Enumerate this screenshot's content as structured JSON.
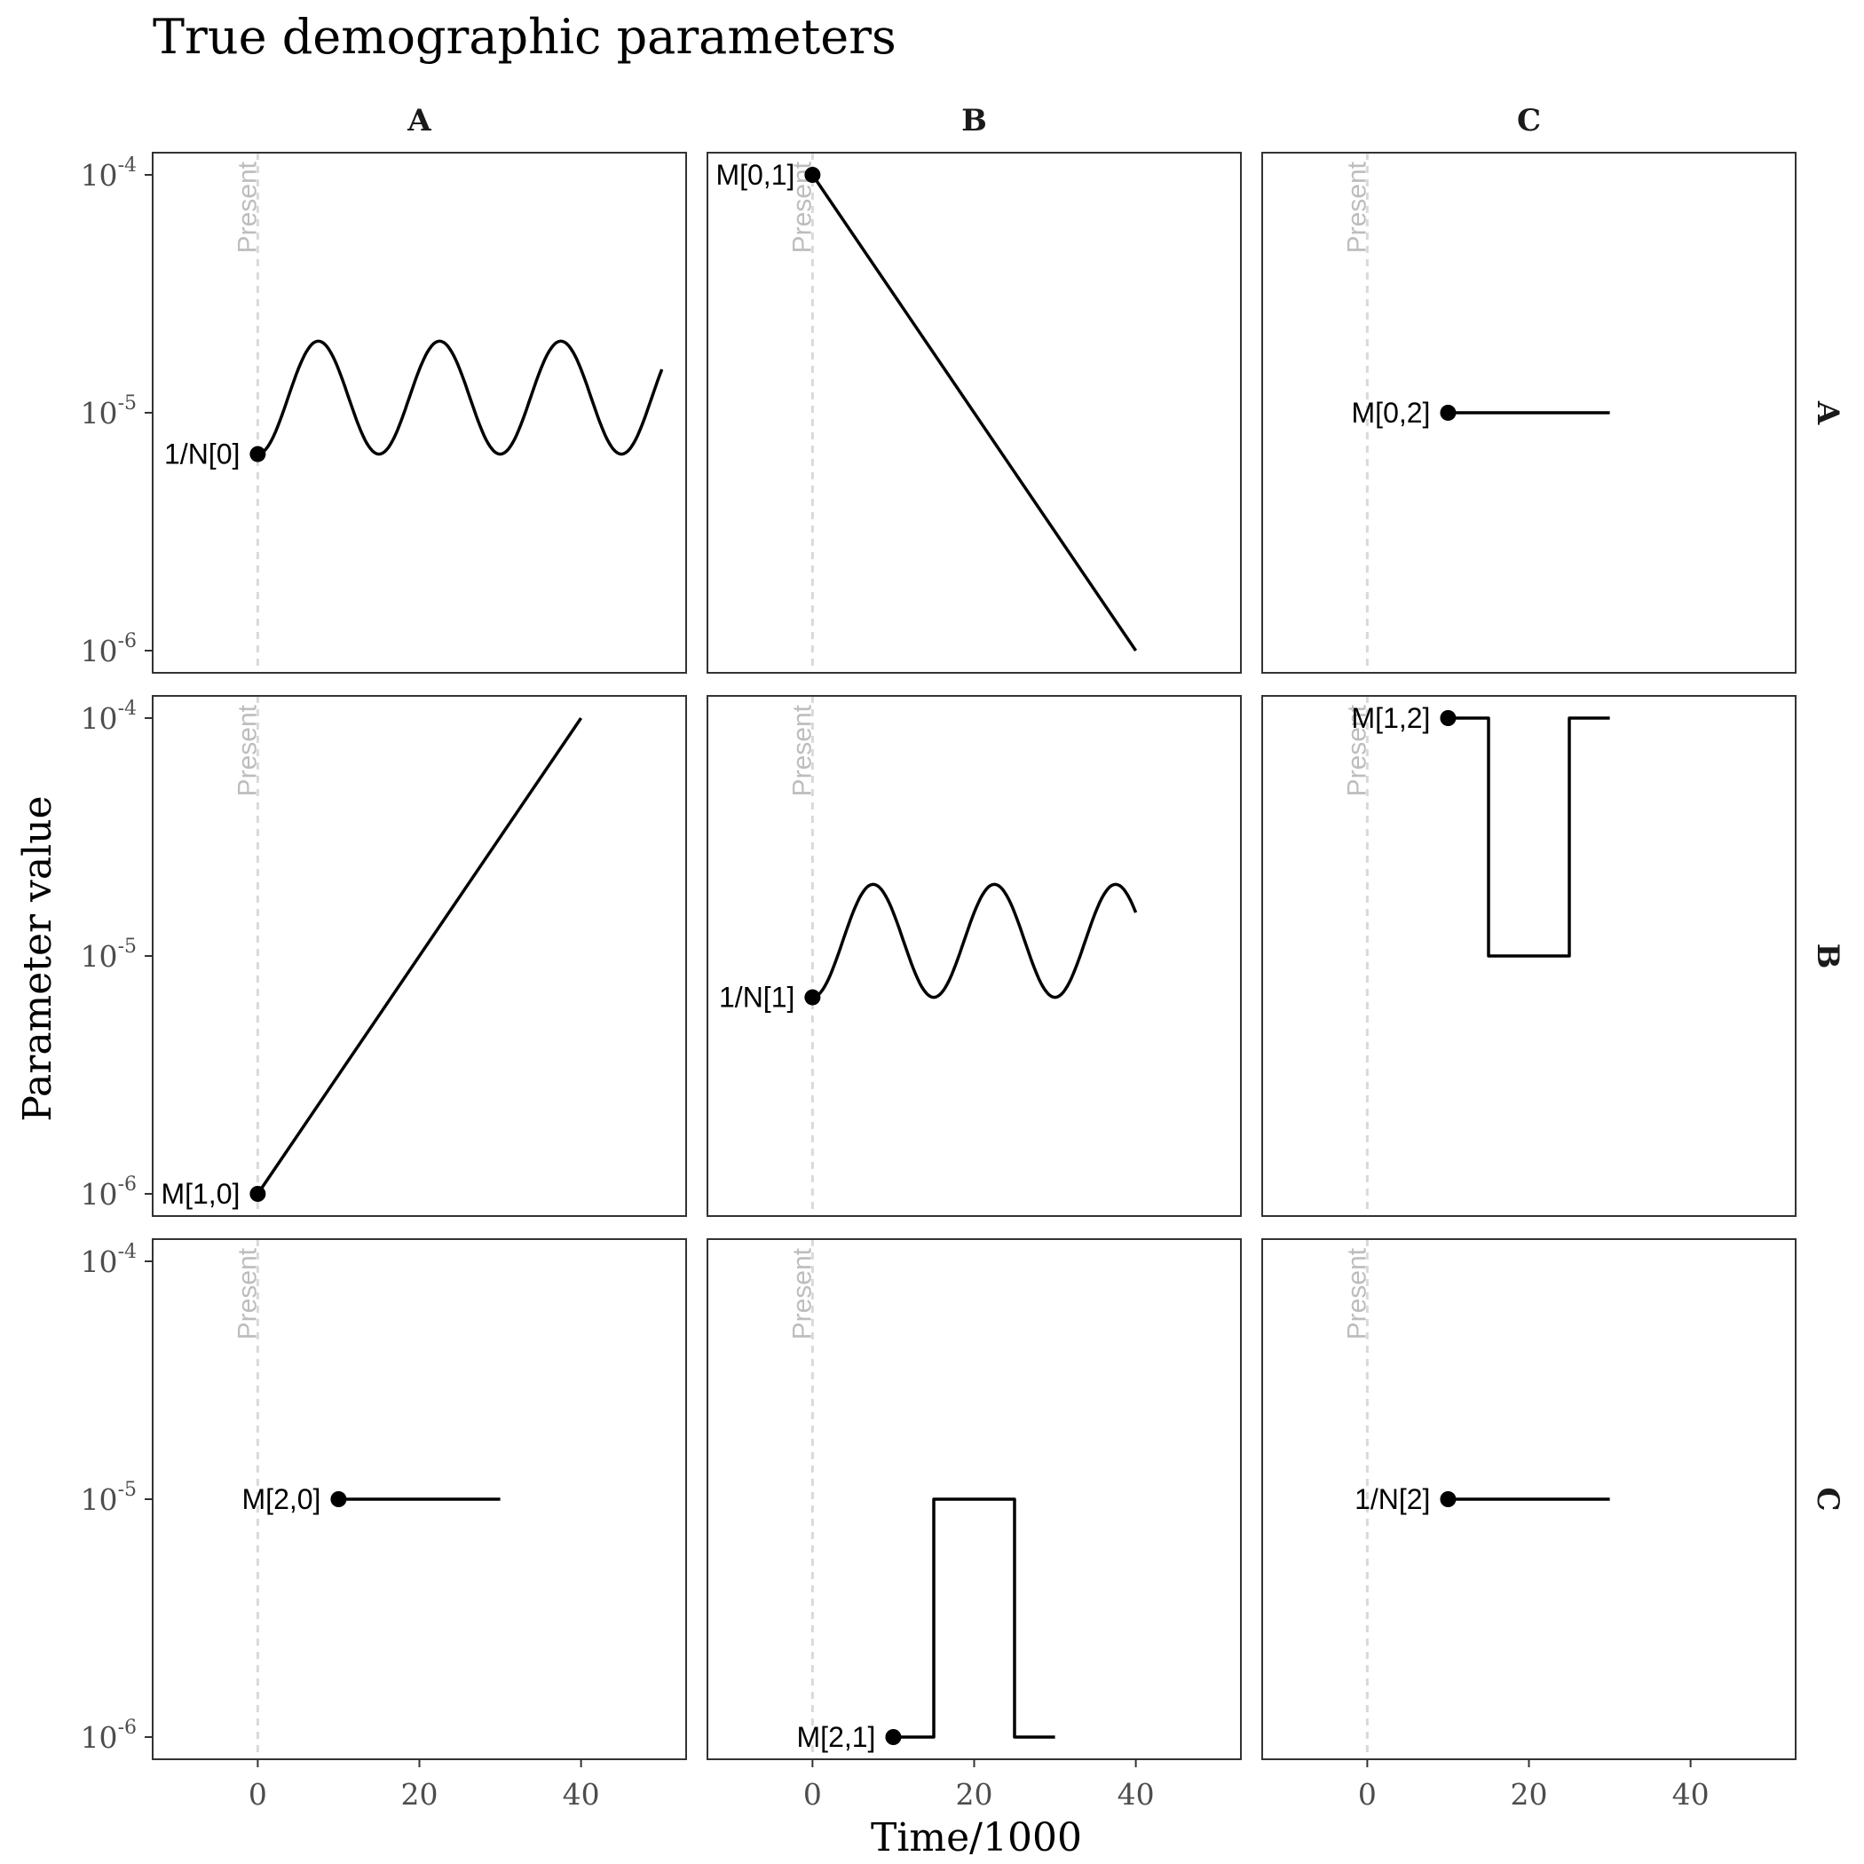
{
  "chart_data": {
    "type": "line",
    "title": "True demographic parameters",
    "xlabel": "Time/1000",
    "ylabel": "Parameter value",
    "y_scale": "log10",
    "ylim": [
      1e-06,
      0.0001
    ],
    "xlim": [
      -13,
      53
    ],
    "x_ticks": [
      0,
      20,
      40
    ],
    "y_ticks": [
      {
        "base": "10",
        "exp": "-4",
        "value": 0.0001
      },
      {
        "base": "10",
        "exp": "-5",
        "value": 1e-05
      },
      {
        "base": "10",
        "exp": "-6",
        "value": 1e-06
      }
    ],
    "columns": [
      "A",
      "B",
      "C"
    ],
    "rows": [
      "A",
      "B",
      "C"
    ],
    "present_label": "Present",
    "present_x": 0,
    "grid": false,
    "panels": [
      {
        "row": "A",
        "col": "A",
        "label": "1/N[0]",
        "shape": "sine",
        "start": 0,
        "end": 50,
        "low": 6.7e-06,
        "high": 2e-05,
        "period": 15
      },
      {
        "row": "A",
        "col": "B",
        "label": "M[0,1]",
        "shape": "exp",
        "start": 0,
        "end": 40,
        "from": 0.0001,
        "to": 1e-06
      },
      {
        "row": "A",
        "col": "C",
        "label": "M[0,2]",
        "shape": "constant",
        "start": 10,
        "end": 30,
        "value": 1e-05
      },
      {
        "row": "B",
        "col": "A",
        "label": "M[1,0]",
        "shape": "exp",
        "start": 0,
        "end": 40,
        "from": 1e-06,
        "to": 0.0001
      },
      {
        "row": "B",
        "col": "B",
        "label": "1/N[1]",
        "shape": "sine",
        "start": 0,
        "end": 40,
        "low": 6.7e-06,
        "high": 2e-05,
        "period": 15
      },
      {
        "row": "B",
        "col": "C",
        "label": "M[1,2]",
        "shape": "pulse",
        "start": 10,
        "end": 30,
        "pulse_start": 15,
        "pulse_end": 25,
        "base": 0.0001,
        "pulse": 1e-05
      },
      {
        "row": "C",
        "col": "A",
        "label": "M[2,0]",
        "shape": "constant",
        "start": 10,
        "end": 30,
        "value": 1e-05
      },
      {
        "row": "C",
        "col": "B",
        "label": "M[2,1]",
        "shape": "pulse",
        "start": 10,
        "end": 30,
        "pulse_start": 15,
        "pulse_end": 25,
        "base": 1e-06,
        "pulse": 1e-05
      },
      {
        "row": "C",
        "col": "C",
        "label": "1/N[2]",
        "shape": "constant",
        "start": 10,
        "end": 30,
        "value": 1e-05
      }
    ]
  }
}
